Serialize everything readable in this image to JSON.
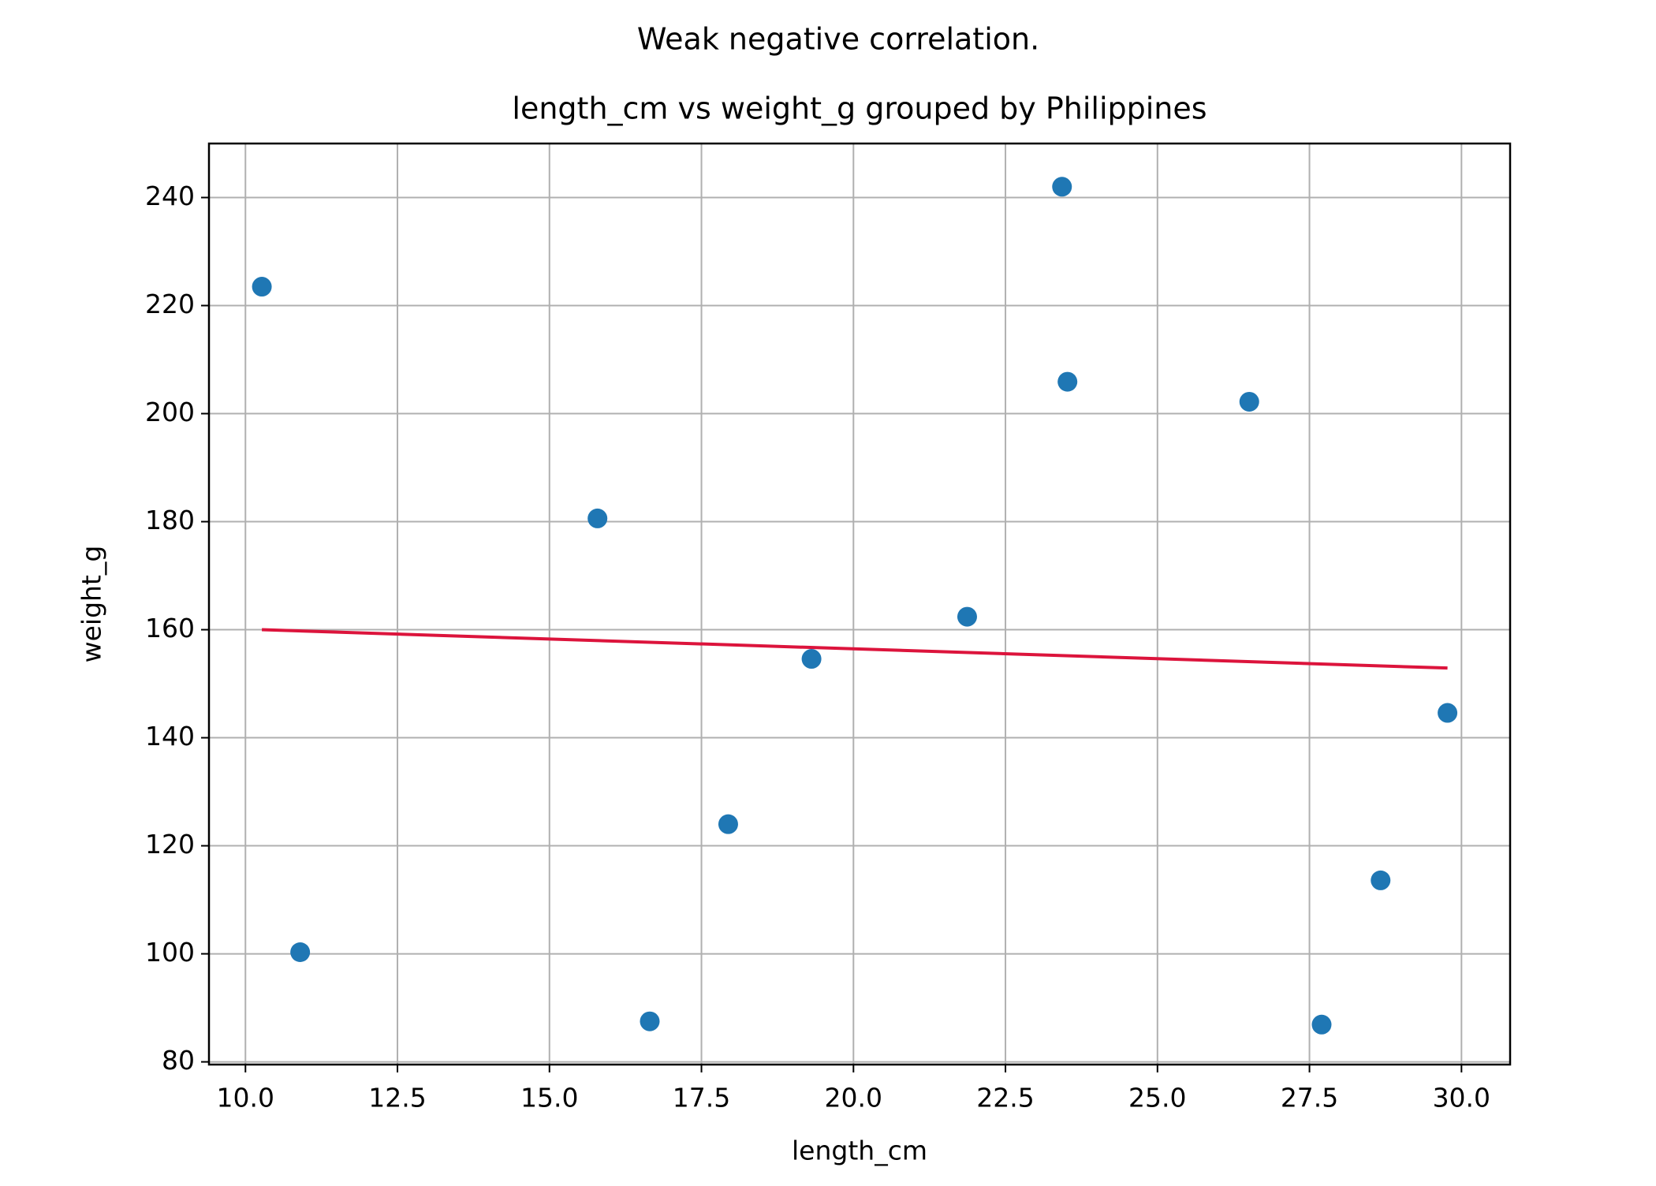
{
  "chart_data": {
    "type": "scatter",
    "suptitle": "Weak negative correlation.",
    "title": "length_cm vs weight_g grouped by Philippines",
    "xlabel": "length_cm",
    "ylabel": "weight_g",
    "xlim": [
      9.4,
      30.8
    ],
    "ylim": [
      79.5,
      250
    ],
    "xticks": [
      10.0,
      12.5,
      15.0,
      17.5,
      20.0,
      22.5,
      25.0,
      27.5,
      30.0
    ],
    "xtick_labels": [
      "10.0",
      "12.5",
      "15.0",
      "17.5",
      "20.0",
      "22.5",
      "25.0",
      "27.5",
      "30.0"
    ],
    "yticks": [
      80,
      100,
      120,
      140,
      160,
      180,
      200,
      220,
      240
    ],
    "ytick_labels": [
      "80",
      "100",
      "120",
      "140",
      "160",
      "180",
      "200",
      "220",
      "240"
    ],
    "grid": true,
    "series": [
      {
        "type": "scatter",
        "color": "#1f77b4",
        "points": [
          {
            "x": 10.27,
            "y": 223.5
          },
          {
            "x": 10.9,
            "y": 100.3
          },
          {
            "x": 15.79,
            "y": 180.6
          },
          {
            "x": 16.65,
            "y": 87.5
          },
          {
            "x": 17.94,
            "y": 124.0
          },
          {
            "x": 19.31,
            "y": 154.6
          },
          {
            "x": 21.87,
            "y": 162.4
          },
          {
            "x": 23.43,
            "y": 242.0
          },
          {
            "x": 23.52,
            "y": 205.9
          },
          {
            "x": 26.51,
            "y": 202.2
          },
          {
            "x": 27.7,
            "y": 86.9
          },
          {
            "x": 28.67,
            "y": 113.6
          },
          {
            "x": 29.77,
            "y": 144.6
          }
        ]
      },
      {
        "type": "line",
        "color": "#dc143c",
        "points": [
          {
            "x": 10.27,
            "y": 160.0
          },
          {
            "x": 29.77,
            "y": 152.9
          }
        ]
      }
    ]
  }
}
